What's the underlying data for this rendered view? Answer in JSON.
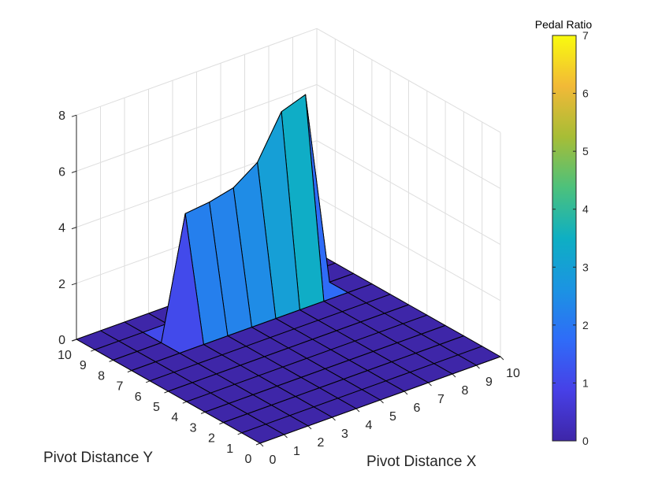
{
  "chart_data": {
    "type": "surface",
    "title": "",
    "xlabel": "Pivot Distance X",
    "ylabel": "Pivot Distance Y",
    "zlabel": "",
    "xlim": [
      0,
      10
    ],
    "ylim": [
      0,
      10
    ],
    "zlim": [
      0,
      8
    ],
    "xticks": [
      0,
      1,
      2,
      3,
      4,
      5,
      6,
      7,
      8,
      9,
      10
    ],
    "yticks": [
      0,
      1,
      2,
      3,
      4,
      5,
      6,
      7,
      8,
      9,
      10
    ],
    "zticks": [
      0,
      2,
      4,
      6,
      8
    ],
    "grid": true,
    "x": [
      0,
      1,
      2,
      3,
      4,
      5,
      6,
      7,
      8,
      9,
      10
    ],
    "y": [
      0,
      1,
      2,
      3,
      4,
      5,
      6,
      7,
      8,
      9,
      10
    ],
    "z": [
      [
        0,
        0,
        0,
        0,
        0,
        0,
        0,
        0,
        0,
        0,
        0
      ],
      [
        0,
        0,
        0,
        0,
        0,
        0,
        0,
        0,
        0,
        0,
        0
      ],
      [
        0,
        0,
        0,
        0,
        0,
        0,
        0,
        0,
        0,
        0,
        0
      ],
      [
        0,
        0,
        0,
        0,
        0,
        0,
        0,
        0,
        0,
        0,
        0
      ],
      [
        0,
        0,
        0,
        0,
        0,
        0,
        0,
        0,
        0,
        0,
        0
      ],
      [
        0,
        0,
        0,
        0,
        0,
        0,
        0,
        0,
        0,
        0,
        0
      ],
      [
        0,
        0,
        0,
        0,
        0,
        0,
        0,
        0,
        0,
        0,
        0
      ],
      [
        0,
        0,
        0,
        0,
        0,
        0,
        0,
        0,
        0,
        0,
        0
      ],
      [
        0,
        0,
        0,
        4.3,
        4.4,
        4.6,
        5.2,
        6.7,
        7.0,
        0,
        0
      ],
      [
        0,
        0,
        0,
        0,
        0,
        0,
        0,
        0,
        0,
        0,
        0
      ],
      [
        0,
        0,
        0,
        0,
        0,
        0,
        0,
        0,
        0,
        0,
        0
      ]
    ],
    "colorbar": {
      "title": "Pedal Ratio",
      "range": [
        0,
        7
      ],
      "ticks": [
        0,
        1,
        2,
        3,
        4,
        5,
        6,
        7
      ],
      "colormap": "parula"
    }
  }
}
